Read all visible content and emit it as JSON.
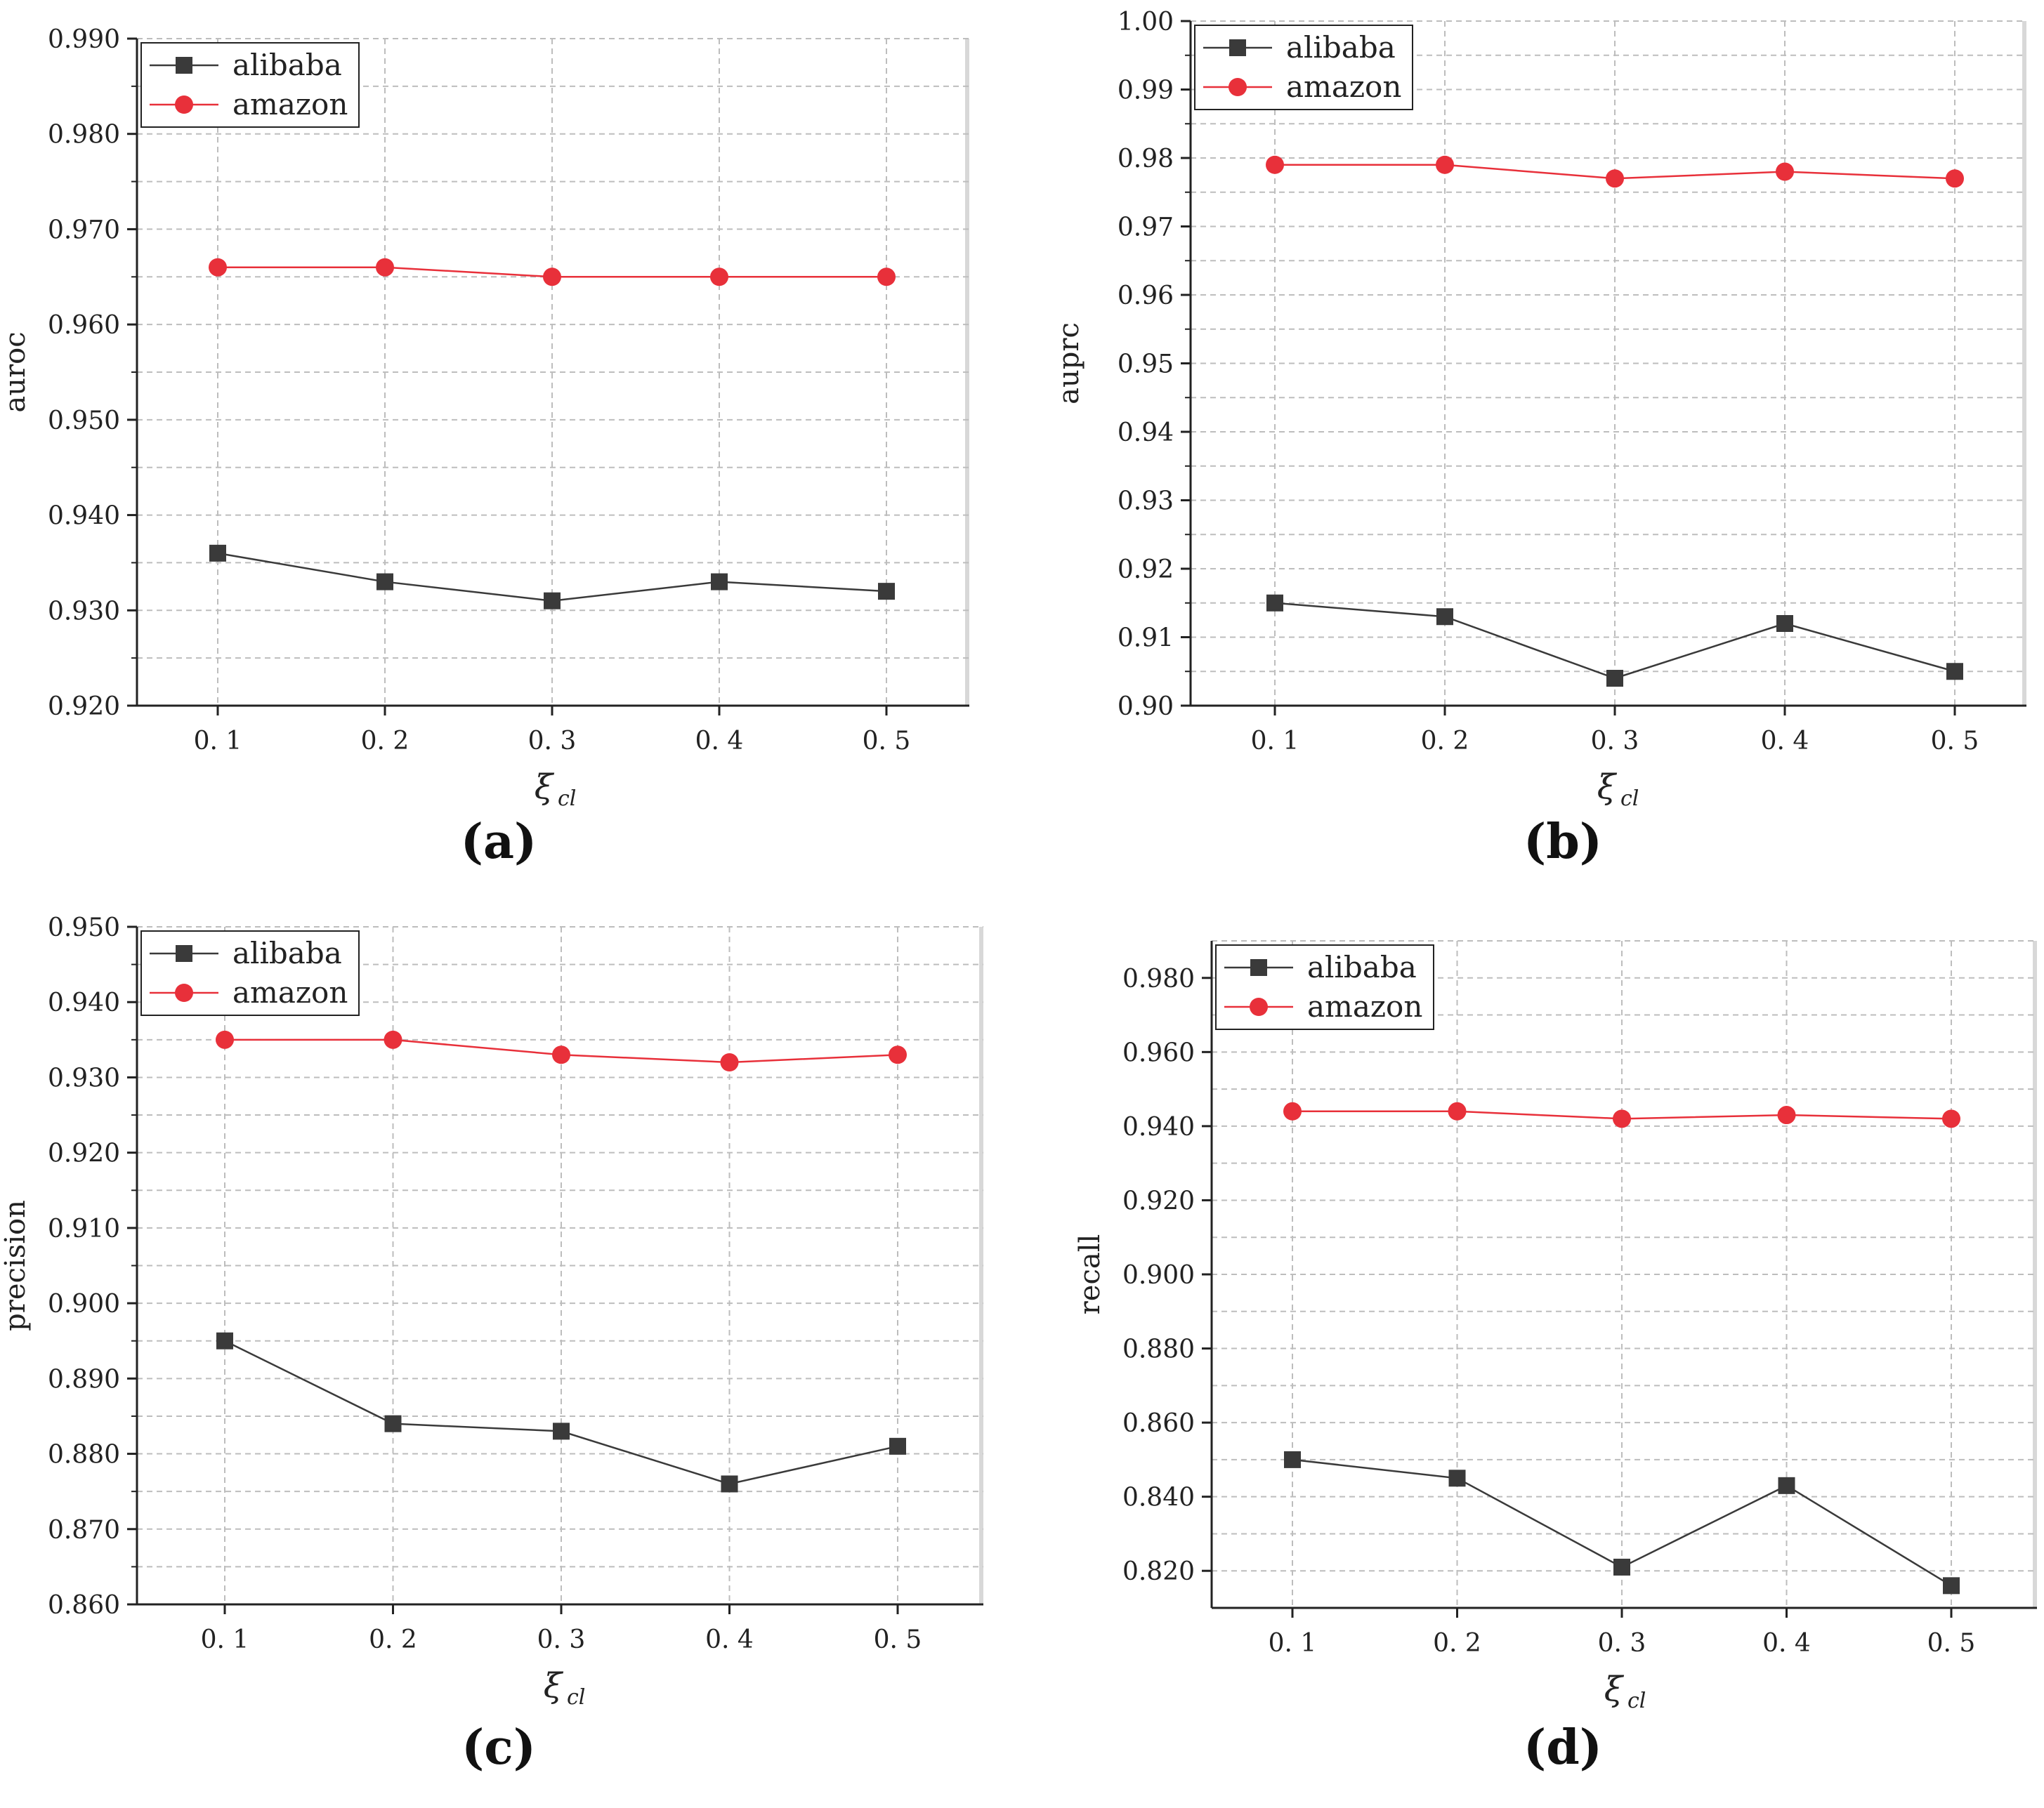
{
  "chart_data": [
    {
      "type": "line",
      "panel_label": "(a)",
      "ylabel": "auroc",
      "xlabel_symbol": "ξ",
      "xlabel_subscript": "cl",
      "categories": [
        "0.1",
        "0.2",
        "0.3",
        "0.4",
        "0.5"
      ],
      "x": [
        0.1,
        0.2,
        0.3,
        0.4,
        0.5
      ],
      "ylim": [
        0.92,
        0.99
      ],
      "yticks": [
        0.92,
        0.93,
        0.94,
        0.95,
        0.96,
        0.97,
        0.98,
        0.99
      ],
      "ytick_labels": [
        "0.920",
        "0.930",
        "0.940",
        "0.950",
        "0.960",
        "0.970",
        "0.980",
        "0.990"
      ],
      "xtick_labels": [
        "0. 1",
        "0. 2",
        "0. 3",
        "0. 4",
        "0. 5"
      ],
      "grid": true,
      "legend_position": "top-left",
      "series": [
        {
          "name": "alibaba",
          "color": "#3a3a3a",
          "marker": "square",
          "values": [
            0.936,
            0.933,
            0.931,
            0.933,
            0.932
          ]
        },
        {
          "name": "amazon",
          "color": "#e8303a",
          "marker": "circle",
          "values": [
            0.966,
            0.966,
            0.965,
            0.965,
            0.965
          ]
        }
      ]
    },
    {
      "type": "line",
      "panel_label": "(b)",
      "ylabel": "auprc",
      "xlabel_symbol": "ξ",
      "xlabel_subscript": "cl",
      "categories": [
        "0.1",
        "0.2",
        "0.3",
        "0.4",
        "0.5"
      ],
      "x": [
        0.1,
        0.2,
        0.3,
        0.4,
        0.5
      ],
      "ylim": [
        0.9,
        1.0
      ],
      "yticks": [
        0.9,
        0.91,
        0.92,
        0.93,
        0.94,
        0.95,
        0.96,
        0.97,
        0.98,
        0.99,
        1.0
      ],
      "ytick_labels": [
        "0.90",
        "0.91",
        "0.92",
        "0.93",
        "0.94",
        "0.95",
        "0.96",
        "0.97",
        "0.98",
        "0.99",
        "1.00"
      ],
      "xtick_labels": [
        "0. 1",
        "0. 2",
        "0. 3",
        "0. 4",
        "0. 5"
      ],
      "grid": true,
      "legend_position": "top-left",
      "series": [
        {
          "name": "alibaba",
          "color": "#3a3a3a",
          "marker": "square",
          "values": [
            0.915,
            0.913,
            0.904,
            0.912,
            0.905
          ]
        },
        {
          "name": "amazon",
          "color": "#e8303a",
          "marker": "circle",
          "values": [
            0.979,
            0.979,
            0.977,
            0.978,
            0.977
          ]
        }
      ]
    },
    {
      "type": "line",
      "panel_label": "(c)",
      "ylabel": "precision",
      "xlabel_symbol": "ξ",
      "xlabel_subscript": "cl",
      "categories": [
        "0.1",
        "0.2",
        "0.3",
        "0.4",
        "0.5"
      ],
      "x": [
        0.1,
        0.2,
        0.3,
        0.4,
        0.5
      ],
      "ylim": [
        0.86,
        0.95
      ],
      "yticks": [
        0.86,
        0.87,
        0.88,
        0.89,
        0.9,
        0.91,
        0.92,
        0.93,
        0.94,
        0.95
      ],
      "ytick_labels": [
        "0.860",
        "0.870",
        "0.880",
        "0.890",
        "0.900",
        "0.910",
        "0.920",
        "0.930",
        "0.940",
        "0.950"
      ],
      "xtick_labels": [
        "0. 1",
        "0. 2",
        "0. 3",
        "0. 4",
        "0. 5"
      ],
      "grid": true,
      "legend_position": "top-left",
      "series": [
        {
          "name": "alibaba",
          "color": "#3a3a3a",
          "marker": "square",
          "values": [
            0.895,
            0.884,
            0.883,
            0.876,
            0.881
          ]
        },
        {
          "name": "amazon",
          "color": "#e8303a",
          "marker": "circle",
          "values": [
            0.935,
            0.935,
            0.933,
            0.932,
            0.933
          ]
        }
      ]
    },
    {
      "type": "line",
      "panel_label": "(d)",
      "ylabel": "recall",
      "xlabel_symbol": "ξ",
      "xlabel_subscript": "cl",
      "categories": [
        "0.1",
        "0.2",
        "0.3",
        "0.4",
        "0.5"
      ],
      "x": [
        0.1,
        0.2,
        0.3,
        0.4,
        0.5
      ],
      "ylim": [
        0.81,
        0.99
      ],
      "yticks": [
        0.82,
        0.84,
        0.86,
        0.88,
        0.9,
        0.92,
        0.94,
        0.96,
        0.98
      ],
      "ytick_labels": [
        "0.820",
        "0.840",
        "0.860",
        "0.880",
        "0.900",
        "0.920",
        "0.940",
        "0.960",
        "0.980"
      ],
      "xtick_labels": [
        "0. 1",
        "0. 2",
        "0. 3",
        "0. 4",
        "0. 5"
      ],
      "grid": true,
      "legend_position": "top-left",
      "series": [
        {
          "name": "alibaba",
          "color": "#3a3a3a",
          "marker": "square",
          "values": [
            0.85,
            0.845,
            0.821,
            0.843,
            0.816
          ]
        },
        {
          "name": "amazon",
          "color": "#e8303a",
          "marker": "circle",
          "values": [
            0.944,
            0.944,
            0.942,
            0.943,
            0.942
          ]
        }
      ]
    }
  ]
}
